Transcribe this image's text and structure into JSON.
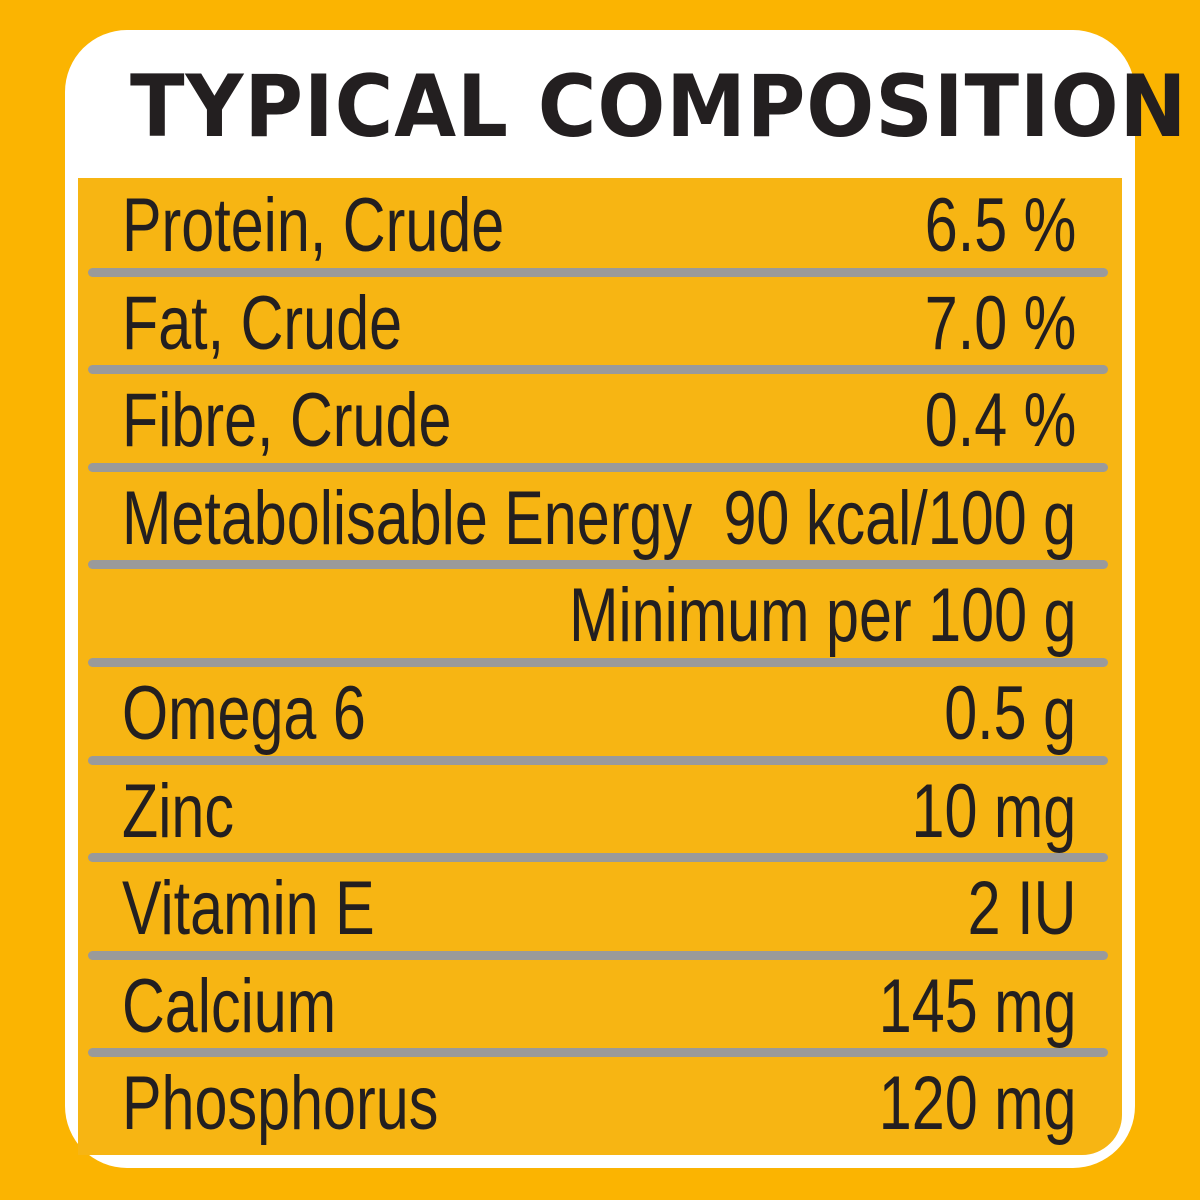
{
  "title": "TYPICAL COMPOSITION",
  "colors": {
    "background": "#FBB401",
    "panel": "#F7B513",
    "divider": "#9A9A9A",
    "text": "#231F20",
    "card": "#FFFFFF"
  },
  "rows": [
    {
      "label": "Protein, Crude",
      "value": "6.5 %"
    },
    {
      "label": "Fat, Crude",
      "value": "7.0 %"
    },
    {
      "label": "Fibre, Crude",
      "value": "0.4 %"
    },
    {
      "label": "Metabolisable Energy",
      "value": "90 kcal/100 g"
    },
    {
      "label": "",
      "value": "Minimum per 100 g"
    },
    {
      "label": "Omega 6",
      "value": "0.5 g"
    },
    {
      "label": "Zinc",
      "value": "10 mg"
    },
    {
      "label": "Vitamin E",
      "value": "2 IU"
    },
    {
      "label": "Calcium",
      "value": "145 mg"
    },
    {
      "label": "Phosphorus",
      "value": "120 mg"
    }
  ]
}
